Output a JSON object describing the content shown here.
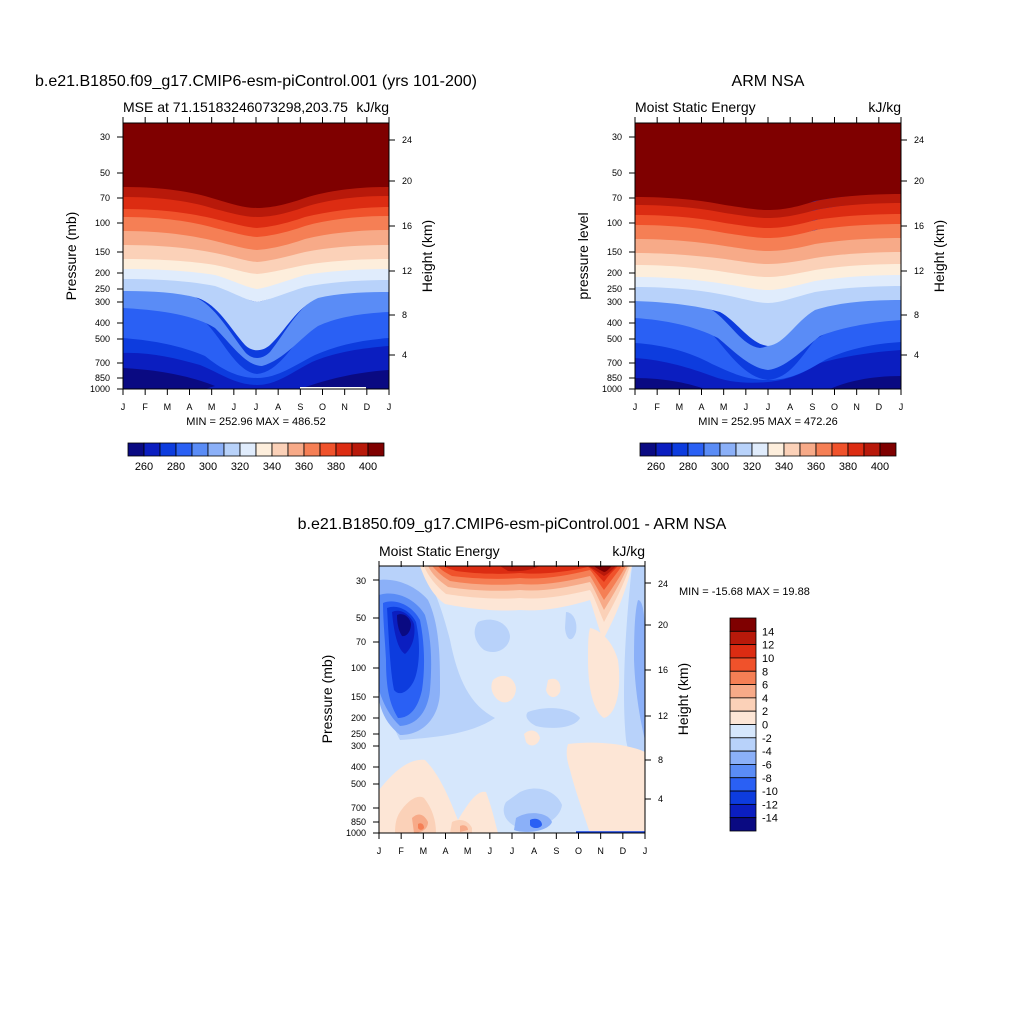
{
  "colors": {
    "panel_palette": [
      "#0a0a82",
      "#0b1ec0",
      "#0d3cde",
      "#2a60f4",
      "#5a8cf6",
      "#8bb0f8",
      "#b8d2fa",
      "#e0ecfc",
      "#fdeedc",
      "#fbd1b8",
      "#f7aa88",
      "#f57f55",
      "#f0522b",
      "#dc2c12",
      "#b8190a",
      "#7f0000"
    ],
    "diff_palette": [
      "#0a0a82",
      "#0b1ec0",
      "#0d3cde",
      "#2a60f4",
      "#5a8cf6",
      "#8bb0f8",
      "#b8d2fa",
      "#d6e7fc",
      "#fde6d6",
      "#fbd1b8",
      "#f7aa88",
      "#f57f55",
      "#f0522b",
      "#dc2c12",
      "#b8190a",
      "#7f0000"
    ]
  },
  "chart_data": [
    {
      "type": "heatmap",
      "title": "b.e21.B1850.f09_g17.CMIP6-esm-piControl.001 (yrs 101-200)",
      "left_label": "MSE at 71.15183246073298,203.75",
      "right_label": "kJ/kg",
      "ylabel": "Pressure (mb)",
      "ylabel_right": "Height (km)",
      "minmax": "MIN = 252.96 MAX = 486.52",
      "x_ticks": [
        "J",
        "F",
        "M",
        "A",
        "M",
        "J",
        "J",
        "A",
        "S",
        "O",
        "N",
        "D",
        "J"
      ],
      "y_ticks": [
        "30",
        "50",
        "70",
        "100",
        "150",
        "200",
        "250",
        "300",
        "400",
        "500",
        "700",
        "850",
        "1000"
      ],
      "y_ticks_right": [
        "24",
        "20",
        "16",
        "12",
        "8",
        "4"
      ],
      "colorbar": {
        "labels": [
          "260",
          "280",
          "300",
          "320",
          "340",
          "360",
          "380",
          "400"
        ]
      }
    },
    {
      "type": "heatmap",
      "title": "ARM NSA",
      "left_label": "Moist Static Energy",
      "right_label": "kJ/kg",
      "ylabel": "pressure level",
      "ylabel_right": "Height (km)",
      "minmax": "MIN = 252.95 MAX = 472.26",
      "x_ticks": [
        "J",
        "F",
        "M",
        "A",
        "M",
        "J",
        "J",
        "A",
        "S",
        "O",
        "N",
        "D",
        "J"
      ],
      "y_ticks": [
        "30",
        "50",
        "70",
        "100",
        "150",
        "200",
        "250",
        "300",
        "400",
        "500",
        "700",
        "850",
        "1000"
      ],
      "y_ticks_right": [
        "24",
        "20",
        "16",
        "12",
        "8",
        "4"
      ],
      "colorbar": {
        "labels": [
          "260",
          "280",
          "300",
          "320",
          "340",
          "360",
          "380",
          "400"
        ]
      }
    },
    {
      "type": "heatmap",
      "title": "b.e21.B1850.f09_g17.CMIP6-esm-piControl.001 - ARM NSA",
      "left_label": "Moist Static Energy",
      "right_label": "kJ/kg",
      "ylabel": "Pressure (mb)",
      "ylabel_right": "Height (km)",
      "minmax": "MIN = -15.68 MAX =  19.88",
      "x_ticks": [
        "J",
        "F",
        "M",
        "A",
        "M",
        "J",
        "J",
        "A",
        "S",
        "O",
        "N",
        "D",
        "J"
      ],
      "y_ticks": [
        "30",
        "50",
        "70",
        "100",
        "150",
        "200",
        "250",
        "300",
        "400",
        "500",
        "700",
        "850",
        "1000"
      ],
      "y_ticks_right": [
        "24",
        "20",
        "16",
        "12",
        "8",
        "4"
      ],
      "colorbar": {
        "labels": [
          "14",
          "12",
          "10",
          "8",
          "6",
          "4",
          "2",
          "0",
          "-2",
          "-4",
          "-6",
          "-8",
          "-10",
          "-12",
          "-14"
        ]
      }
    }
  ]
}
